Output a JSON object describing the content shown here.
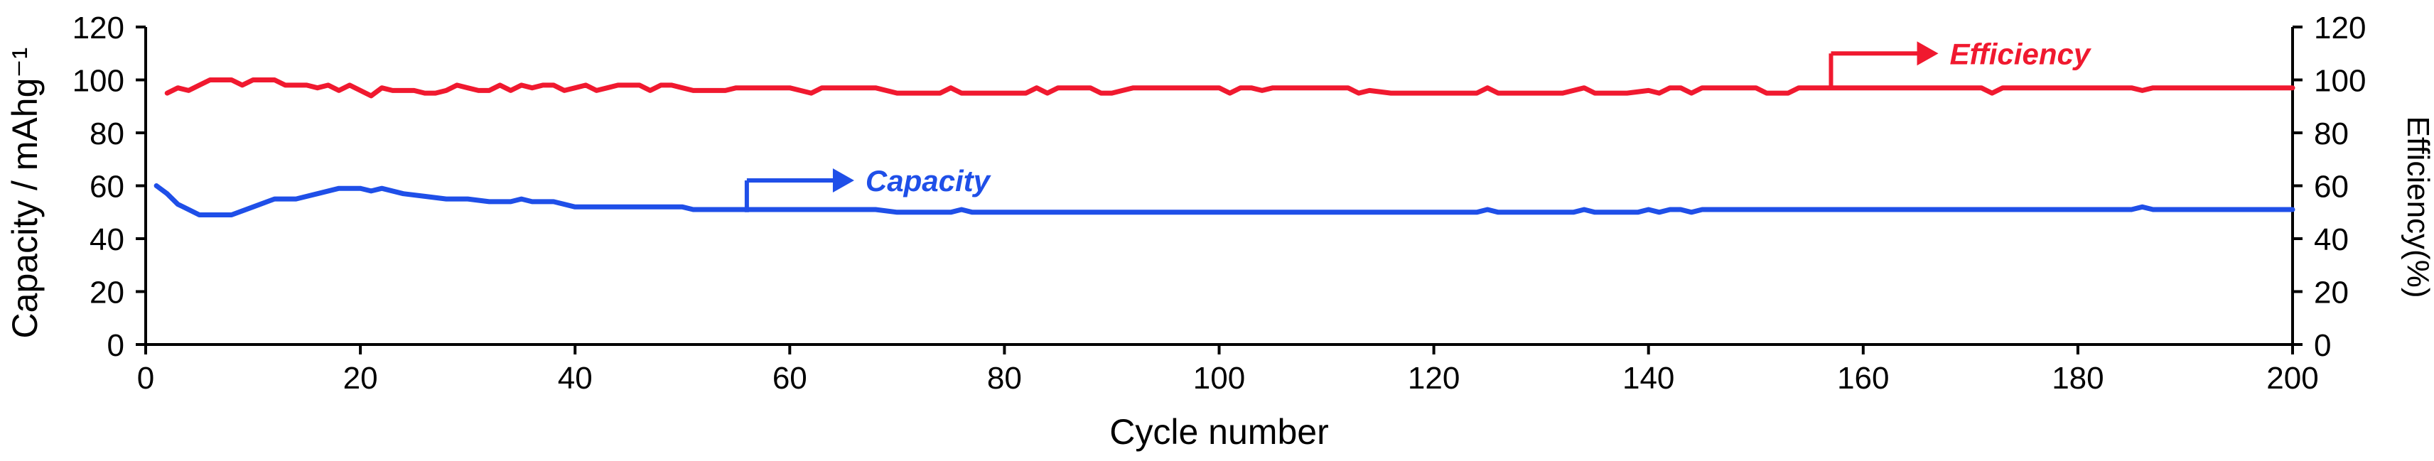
{
  "chart_data": {
    "type": "line",
    "title": "",
    "xlabel": "Cycle number",
    "ylabel_left": "Capacity / mAhg⁻¹",
    "ylabel_right": "Efficiency(%)",
    "xlim": [
      0,
      200
    ],
    "ylim_left": [
      0,
      120
    ],
    "ylim_right": [
      0,
      120
    ],
    "x_ticks": [
      "0",
      "20",
      "40",
      "60",
      "80",
      "100",
      "120",
      "140",
      "160",
      "180",
      "200"
    ],
    "y_ticks_left": [
      "0",
      "20",
      "40",
      "60",
      "80",
      "100",
      "120"
    ],
    "y_ticks_right": [
      "0",
      "20",
      "40",
      "60",
      "80",
      "100",
      "120"
    ],
    "grid": false,
    "colors": {
      "capacity": "#1f4fe8",
      "efficiency": "#f0192f"
    },
    "annotations": [
      {
        "text": "Capacity",
        "series": "capacity",
        "stem_x": 56,
        "stem_y": 50,
        "arrow_y": 62,
        "arrow_to_x": 66
      },
      {
        "text": "Efficiency",
        "series": "efficiency",
        "stem_x": 157,
        "stem_y": 97,
        "arrow_y": 110,
        "arrow_to_x": 167
      }
    ],
    "series": [
      {
        "name": "Capacity",
        "axis": "left",
        "color": "#1f4fe8",
        "x": [
          1,
          2,
          3,
          4,
          5,
          8,
          10,
          12,
          14,
          16,
          18,
          20,
          21,
          22,
          24,
          26,
          28,
          30,
          32,
          34,
          35,
          36,
          38,
          40,
          45,
          50,
          51,
          55,
          60,
          65,
          68,
          70,
          75,
          76,
          77,
          80,
          90,
          100,
          110,
          120,
          124,
          125,
          126,
          130,
          133,
          134,
          135,
          139,
          140,
          141,
          142,
          143,
          144,
          145,
          150,
          160,
          170,
          180,
          185,
          186,
          187,
          190,
          200
        ],
        "y": [
          60,
          57,
          53,
          51,
          49,
          49,
          52,
          55,
          55,
          57,
          59,
          59,
          58,
          59,
          57,
          56,
          55,
          55,
          54,
          54,
          55,
          54,
          54,
          52,
          52,
          52,
          51,
          51,
          51,
          51,
          51,
          50,
          50,
          51,
          50,
          50,
          50,
          50,
          50,
          50,
          50,
          51,
          50,
          50,
          50,
          51,
          50,
          50,
          51,
          50,
          51,
          51,
          50,
          51,
          51,
          51,
          51,
          51,
          51,
          52,
          51,
          51,
          51
        ]
      },
      {
        "name": "Efficiency",
        "axis": "right",
        "color": "#f0192f",
        "x": [
          2,
          3,
          4,
          5,
          6,
          7,
          8,
          9,
          10,
          11,
          12,
          13,
          14,
          15,
          16,
          17,
          18,
          19,
          20,
          21,
          22,
          23,
          24,
          25,
          26,
          27,
          28,
          29,
          30,
          31,
          32,
          33,
          34,
          35,
          36,
          37,
          38,
          39,
          40,
          41,
          42,
          43,
          44,
          45,
          46,
          47,
          48,
          49,
          50,
          51,
          52,
          53,
          54,
          55,
          56,
          58,
          60,
          61,
          62,
          63,
          64,
          66,
          68,
          70,
          72,
          74,
          75,
          76,
          77,
          78,
          80,
          82,
          83,
          84,
          85,
          86,
          88,
          89,
          90,
          91,
          92,
          94,
          96,
          98,
          100,
          101,
          102,
          103,
          104,
          105,
          106,
          108,
          110,
          112,
          113,
          114,
          116,
          118,
          120,
          122,
          124,
          125,
          126,
          128,
          130,
          132,
          134,
          135,
          136,
          138,
          140,
          141,
          142,
          143,
          144,
          145,
          146,
          148,
          150,
          151,
          152,
          153,
          154,
          155,
          156,
          158,
          160,
          165,
          170,
          171,
          172,
          173,
          175,
          180,
          185,
          186,
          187,
          190,
          200
        ],
        "y": [
          95,
          97,
          96,
          98,
          100,
          100,
          100,
          98,
          100,
          100,
          100,
          98,
          98,
          98,
          97,
          98,
          96,
          98,
          96,
          94,
          97,
          96,
          96,
          96,
          95,
          95,
          96,
          98,
          97,
          96,
          96,
          98,
          96,
          98,
          97,
          98,
          98,
          96,
          97,
          98,
          96,
          97,
          98,
          98,
          98,
          96,
          98,
          98,
          97,
          96,
          96,
          96,
          96,
          97,
          97,
          97,
          97,
          96,
          95,
          97,
          97,
          97,
          97,
          95,
          95,
          95,
          97,
          95,
          95,
          95,
          95,
          95,
          97,
          95,
          97,
          97,
          97,
          95,
          95,
          96,
          97,
          97,
          97,
          97,
          97,
          95,
          97,
          97,
          96,
          97,
          97,
          97,
          97,
          97,
          95,
          96,
          95,
          95,
          95,
          95,
          95,
          97,
          95,
          95,
          95,
          95,
          97,
          95,
          95,
          95,
          96,
          95,
          97,
          97,
          95,
          97,
          97,
          97,
          97,
          95,
          95,
          95,
          97,
          97,
          97,
          97,
          97,
          97,
          97,
          97,
          95,
          97,
          97,
          97,
          97,
          96,
          97,
          97,
          97
        ]
      }
    ]
  }
}
